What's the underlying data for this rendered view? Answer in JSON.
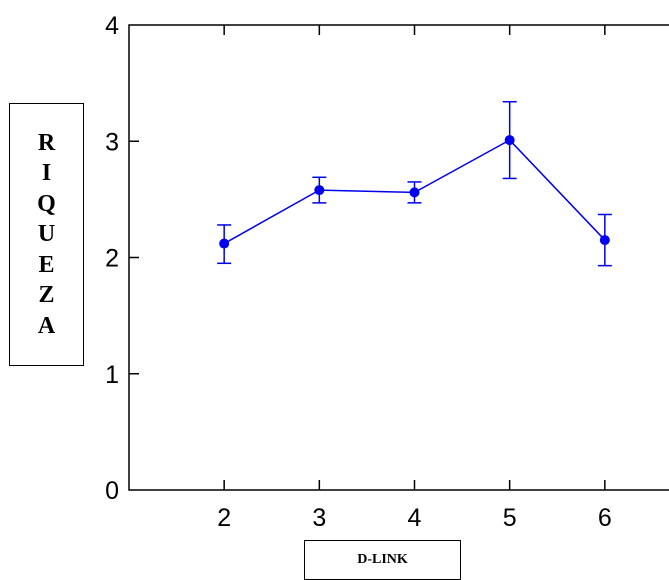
{
  "chart_data": {
    "type": "line",
    "title": "",
    "xlabel": "D-LINK",
    "ylabel": "RIQUEZA",
    "x": [
      2,
      3,
      4,
      5,
      6
    ],
    "xticks": [
      "2",
      "3",
      "4",
      "5",
      "6"
    ],
    "yticks": [
      "0",
      "1",
      "2",
      "3",
      "4"
    ],
    "xlim": [
      1,
      7
    ],
    "ylim": [
      0,
      4
    ],
    "grid": false,
    "series": [
      {
        "values": [
          2.12,
          2.58,
          2.56,
          3.01,
          2.15
        ],
        "error_low": [
          1.95,
          2.47,
          2.47,
          2.68,
          1.93
        ],
        "error_high": [
          2.28,
          2.69,
          2.65,
          3.34,
          2.37
        ],
        "color": "#0000ee"
      }
    ]
  },
  "colors": {
    "axis": "#000000",
    "series": "#0000ee"
  }
}
